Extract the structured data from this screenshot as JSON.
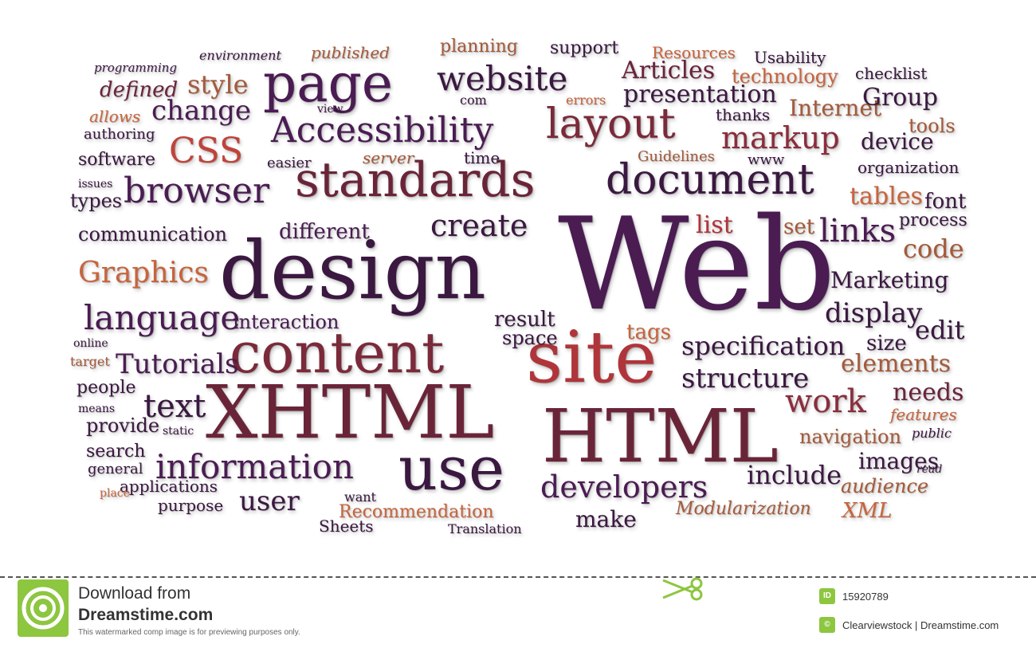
{
  "cloud": {
    "web": "Web",
    "design": "design",
    "xhtml": "XHTML",
    "html": "HTML",
    "site": "site",
    "content": "content",
    "use": "use",
    "standards": "standards",
    "page": "page",
    "website": "website",
    "accessibility": "Accessibility",
    "layout": "layout",
    "document": "document",
    "browser": "browser",
    "css": "CSS",
    "markup": "markup",
    "create": "create",
    "links": "links",
    "graphics": "Graphics",
    "language": "language",
    "information": "information",
    "developers": "developers",
    "text": "text",
    "user": "user",
    "structure": "structure",
    "specification": "specification",
    "display": "display",
    "work": "work",
    "tutorials": "Tutorials",
    "interaction": "interaction",
    "different": "different",
    "communication": "communication",
    "change": "change",
    "style": "style",
    "presentation": "presentation",
    "articles": "Articles",
    "technology": "technology",
    "internet": "Internet",
    "group": "Group",
    "code": "code",
    "marketing": "Marketing",
    "include": "include",
    "images": "images",
    "elements": "elements",
    "needs": "needs",
    "navigation": "navigation",
    "recommendation": "Recommendation",
    "make": "make",
    "modularization": "Modularization",
    "xml": "XML",
    "audience": "audience",
    "features": "features",
    "tables": "tables",
    "font": "font",
    "process": "process",
    "list": "list",
    "set": "set",
    "tags": "tags",
    "result": "result",
    "space": "space",
    "edit": "edit",
    "size": "size",
    "device": "device",
    "organization": "organization",
    "tools": "tools",
    "checklist": "checklist",
    "usability": "Usability",
    "resources": "Resources",
    "support": "support",
    "planning": "planning",
    "published": "published",
    "environment": "environment",
    "programming": "programming",
    "defined": "defined",
    "allows": "allows",
    "authoring": "authoring",
    "software": "software",
    "issues": "issues",
    "types": "types",
    "easier": "easier",
    "view": "view",
    "com": "com",
    "server": "server",
    "time": "time",
    "errors": "errors",
    "thanks": "thanks",
    "guidelines": "Guidelines",
    "www": "www",
    "online": "online",
    "target": "target",
    "people": "people",
    "means": "means",
    "provide": "provide",
    "static": "static",
    "search": "search",
    "general": "general",
    "applications": "applications",
    "place": "place",
    "purpose": "purpose",
    "want": "want",
    "sheets": "Sheets",
    "translation": "Translation",
    "public": "public",
    "read": "read"
  },
  "footer": {
    "download_from": "Download from",
    "site": "Dreamstime.com",
    "notice": "This watermarked comp image is for previewing purposes only.",
    "id_badge": "ID",
    "image_id": "15920789",
    "copyright_badge": "©",
    "credit": "Clearviewstock | Dreamstime.com"
  },
  "colors": {
    "dark_purple": "#3a1840",
    "purple": "#4a1c52",
    "maroon": "#6a2438",
    "red": "#b0353a",
    "orange": "#c8643c",
    "green": "#8dc63f"
  },
  "icons": {
    "logo": "dreamstime-spiral-icon",
    "scissors": "scissors-icon"
  }
}
